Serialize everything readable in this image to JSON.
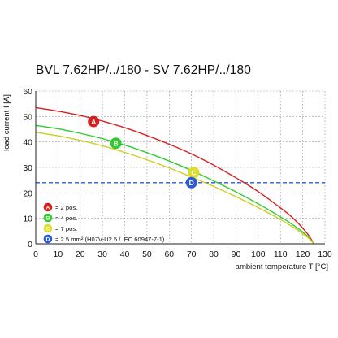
{
  "chart_data": {
    "type": "line",
    "title": "BVL 7.62HP/../180 - SV 7.62HP/../180",
    "xlabel": "ambient temperature T [°C]",
    "ylabel": "load current I [A]",
    "xlim": [
      0,
      130
    ],
    "ylim": [
      0,
      60
    ],
    "xticks": [
      0,
      10,
      20,
      30,
      40,
      50,
      60,
      70,
      80,
      90,
      100,
      110,
      120,
      130
    ],
    "yticks": [
      0,
      10,
      20,
      30,
      40,
      50,
      60
    ],
    "grid": true,
    "series": [
      {
        "id": "A",
        "name": "= 2 pos.",
        "color": "#d62020",
        "x": [
          0,
          10,
          20,
          30,
          40,
          50,
          60,
          70,
          80,
          90,
          100,
          110,
          115,
          120,
          123,
          125
        ],
        "y": [
          53.5,
          52.1,
          50.4,
          48.2,
          45.6,
          42.5,
          39.1,
          35.3,
          30.9,
          25.9,
          20.5,
          14.1,
          10.6,
          6.2,
          2.9,
          0
        ]
      },
      {
        "id": "B",
        "name": "= 4 pos.",
        "color": "#2ecc2e",
        "x": [
          0,
          10,
          20,
          30,
          40,
          50,
          60,
          70,
          80,
          90,
          100,
          110,
          115,
          120,
          123,
          125
        ],
        "y": [
          46.5,
          45.2,
          43.4,
          41.3,
          38.8,
          35.8,
          32.5,
          28.8,
          24.7,
          20.4,
          15.7,
          10.6,
          7.8,
          4.6,
          2.2,
          0
        ]
      },
      {
        "id": "C",
        "name": "= 7 pos.",
        "color": "#cccc22",
        "x": [
          0,
          10,
          20,
          30,
          40,
          50,
          60,
          70,
          80,
          90,
          100,
          110,
          115,
          120,
          123,
          125
        ],
        "y": [
          43.8,
          42.4,
          40.6,
          38.5,
          35.9,
          33.0,
          29.8,
          26.2,
          22.5,
          18.5,
          14.2,
          9.5,
          6.9,
          4.0,
          1.9,
          0
        ]
      }
    ],
    "reference_line": {
      "id": "D",
      "name": "= 2.5 mm² (H07V-U2.5 / IEC 60947-7-1)",
      "color": "#2a5ad8",
      "y": 24,
      "marker_x": 70
    },
    "markers": [
      {
        "id": "A",
        "x": 26,
        "y": 48,
        "color": "#d62020",
        "text_color": "#ffffff"
      },
      {
        "id": "B",
        "x": 36,
        "y": 39.5,
        "color": "#2ecc2e",
        "text_color": "#ffffff"
      },
      {
        "id": "C",
        "x": 71,
        "y": 28,
        "color": "#dddd2a",
        "text_color": "#ffffff"
      },
      {
        "id": "D",
        "x": 70,
        "y": 24,
        "color": "#2a5ad8",
        "text_color": "#ffffff"
      }
    ],
    "legend_placement": "bottom-left"
  }
}
